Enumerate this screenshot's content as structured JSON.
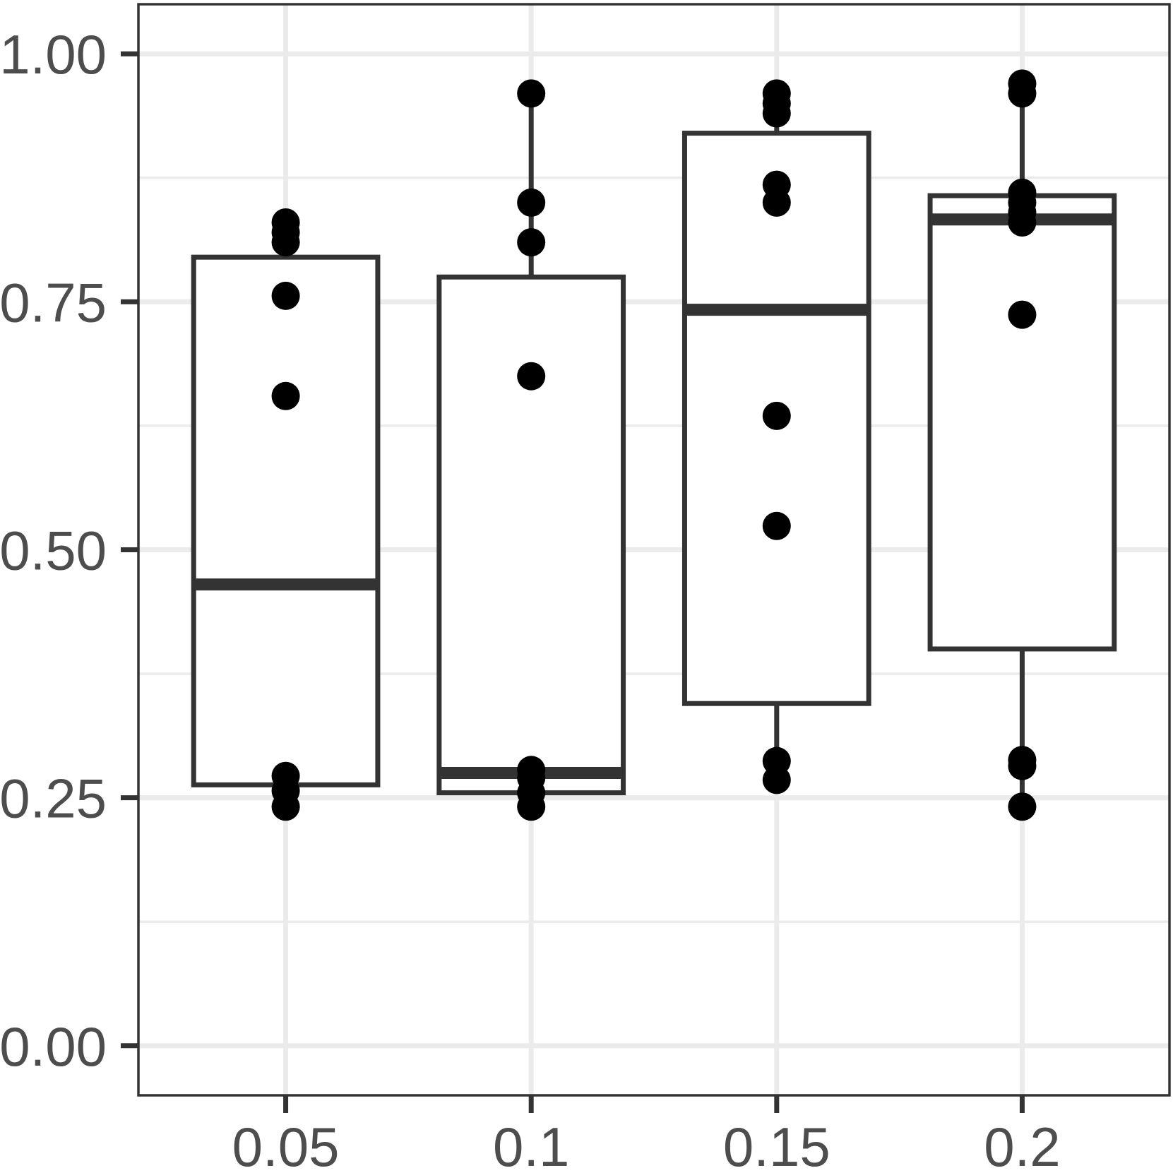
{
  "chart_data": {
    "type": "boxplot",
    "title": "",
    "xlabel": "",
    "ylabel": "",
    "categories": [
      "0.05",
      "0.1",
      "0.15",
      "0.2"
    ],
    "ylim": [
      -0.05,
      1.05
    ],
    "y_ticks": [
      0.0,
      0.25,
      0.5,
      0.75,
      1.0
    ],
    "y_tick_labels": [
      "0.00",
      "0.25",
      "0.50",
      "0.75",
      "1.00"
    ],
    "grid": true,
    "legend": "none",
    "colors": {
      "box_outline": "#333333",
      "box_fill": "#ffffff",
      "points": "#000000",
      "grid": "#ebebeb",
      "tick_text": "#4d4d4d"
    },
    "boxes": [
      {
        "category": "0.05",
        "whisker_low": 0.24,
        "q1": 0.263,
        "median": 0.465,
        "q3": 0.795,
        "whisker_high": 0.83
      },
      {
        "category": "0.1",
        "whisker_low": 0.24,
        "q1": 0.255,
        "median": 0.275,
        "q3": 0.775,
        "whisker_high": 0.96
      },
      {
        "category": "0.15",
        "whisker_low": 0.268,
        "q1": 0.345,
        "median": 0.742,
        "q3": 0.92,
        "whisker_high": 0.96
      },
      {
        "category": "0.2",
        "whisker_low": 0.24,
        "q1": 0.4,
        "median": 0.833,
        "q3": 0.857,
        "whisker_high": 0.97
      }
    ],
    "points": [
      {
        "category": "0.05",
        "values": [
          0.83,
          0.82,
          0.81,
          0.756,
          0.655,
          0.272,
          0.257,
          0.241
        ]
      },
      {
        "category": "0.1",
        "values": [
          0.96,
          0.85,
          0.81,
          0.675,
          0.278,
          0.27,
          0.255,
          0.241
        ]
      },
      {
        "category": "0.15",
        "values": [
          0.96,
          0.95,
          0.94,
          0.868,
          0.85,
          0.635,
          0.524,
          0.287,
          0.268
        ]
      },
      {
        "category": "0.2",
        "values": [
          0.97,
          0.96,
          0.86,
          0.85,
          0.84,
          0.83,
          0.737,
          0.288,
          0.282,
          0.241
        ]
      }
    ]
  }
}
